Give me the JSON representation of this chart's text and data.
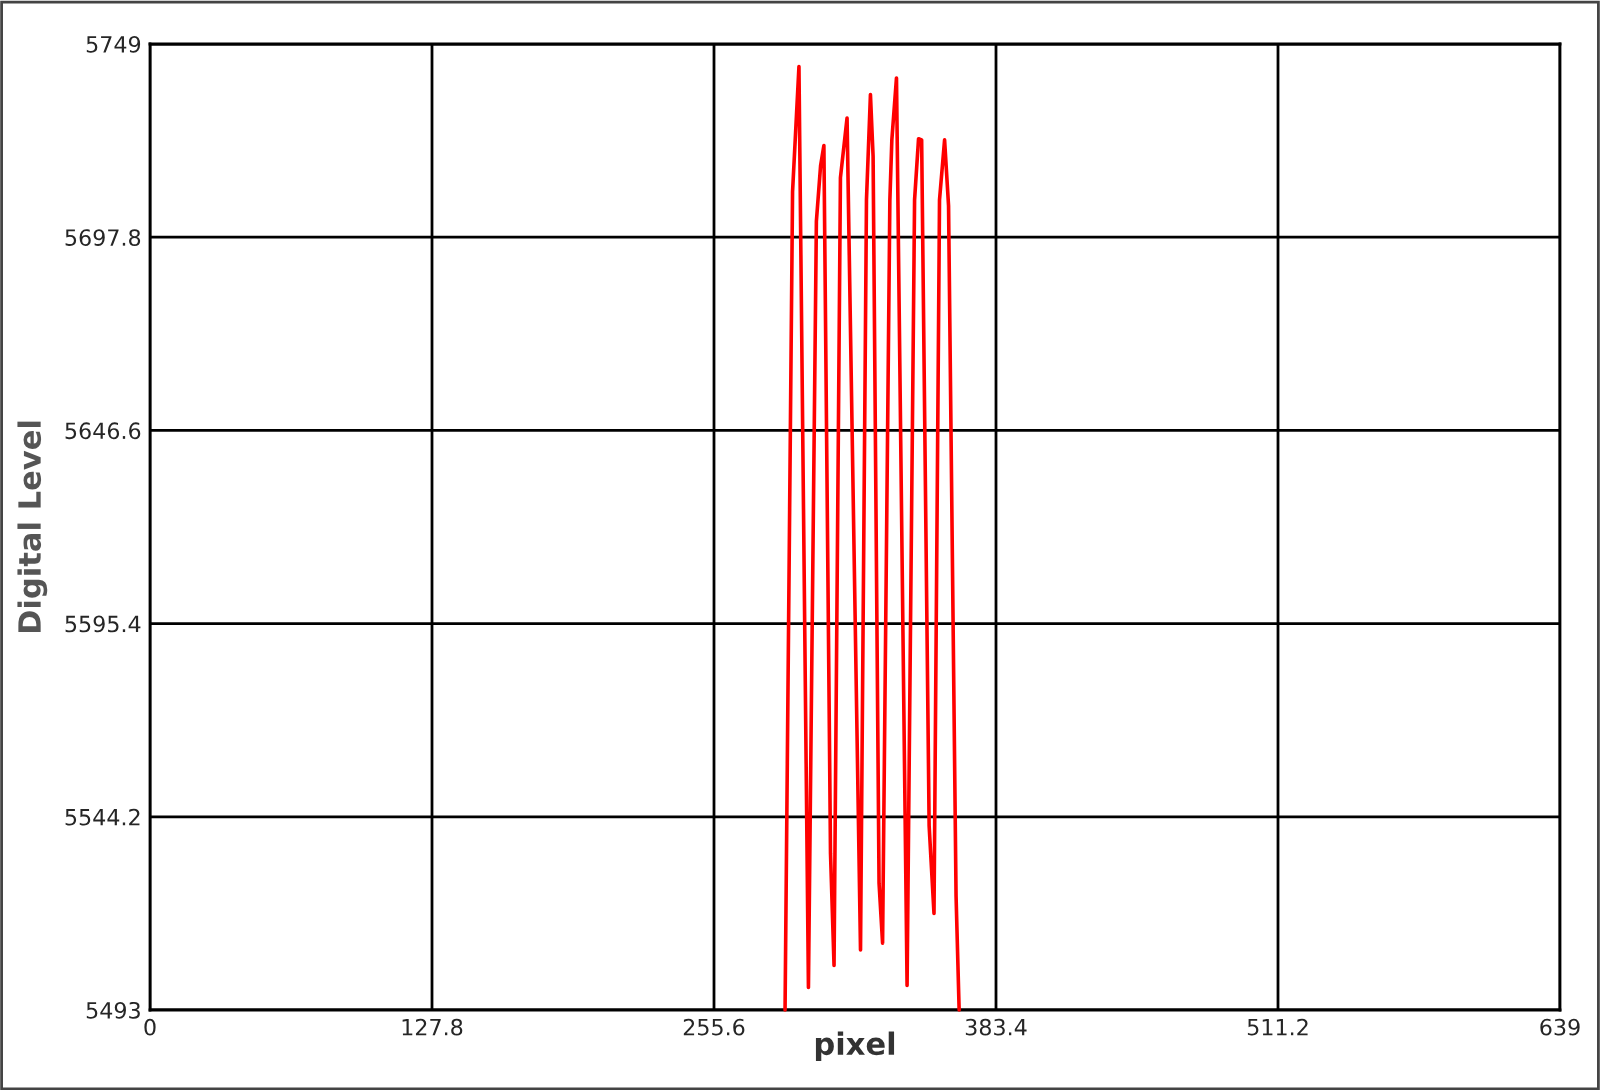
{
  "chart_data": {
    "type": "line",
    "xlabel": "pixel",
    "ylabel": "Digital Level",
    "series": [
      {
        "color": "#ff0000",
        "x": [
          287.8,
          291.2,
          294.1,
          298.4,
          302.0,
          303.9,
          305.4,
          308.4,
          310.0,
          312.9,
          315.9,
          322.0,
          324.7,
          326.5,
          327.7,
          330.4,
          332.0,
          335.3,
          336.2,
          338.3,
          343.1,
          346.5,
          348.3,
          349.7,
          353.1,
          355.3,
          357.8,
          360.1,
          361.9,
          365.3,
          366.7
        ],
        "values": [
          5493,
          5709.8,
          5743.0,
          5499.0,
          5702.0,
          5716.7,
          5722.1,
          5534.5,
          5504.8,
          5713.6,
          5729.4,
          5508.9,
          5707.7,
          5735.6,
          5719.3,
          5526.6,
          5510.7,
          5707.7,
          5723.6,
          5740.0,
          5499.5,
          5707.7,
          5723.9,
          5723.6,
          5541.8,
          5518.6,
          5707.7,
          5723.6,
          5706.1,
          5523.2,
          5493
        ]
      }
    ],
    "xlim": [
      0,
      639
    ],
    "xticks": [
      0,
      127.8,
      255.6,
      383.4,
      511.2,
      639
    ],
    "ylim": [
      5493,
      5749
    ],
    "yticks": [
      5493,
      5544.2,
      5595.4,
      5646.6,
      5697.8,
      5749
    ],
    "grid": true,
    "line_style": "solid",
    "marker": "none",
    "legend": false
  }
}
